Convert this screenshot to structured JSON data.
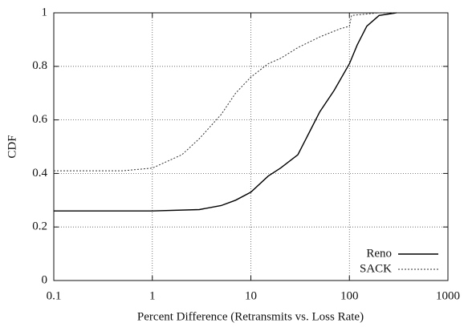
{
  "chart_data": {
    "type": "line",
    "xlabel": "Percent Difference (Retransmits vs. Loss Rate)",
    "ylabel": "CDF",
    "xscale": "log",
    "xlim": [
      0.1,
      1000
    ],
    "xticks": [
      0.1,
      1,
      10,
      100,
      1000
    ],
    "ylim": [
      0,
      1
    ],
    "yticks": [
      0,
      0.2,
      0.4,
      0.6,
      0.8,
      1
    ],
    "grid": true,
    "legend": "lower right",
    "series": [
      {
        "name": "Reno",
        "color": "#000000",
        "style": "solid",
        "x": [
          0.1,
          1,
          3,
          5,
          7,
          10,
          15,
          20,
          30,
          40,
          50,
          70,
          100,
          120,
          150,
          200,
          300
        ],
        "values": [
          0.26,
          0.26,
          0.265,
          0.28,
          0.3,
          0.33,
          0.39,
          0.42,
          0.47,
          0.56,
          0.63,
          0.71,
          0.81,
          0.88,
          0.95,
          0.99,
          1.0
        ]
      },
      {
        "name": "SACK",
        "color": "#333333",
        "style": "dotted",
        "x": [
          0.1,
          0.5,
          1,
          2,
          3,
          5,
          7,
          10,
          15,
          20,
          30,
          50,
          80,
          100,
          105,
          200,
          300
        ],
        "values": [
          0.41,
          0.41,
          0.42,
          0.47,
          0.53,
          0.62,
          0.7,
          0.76,
          0.81,
          0.83,
          0.87,
          0.91,
          0.94,
          0.95,
          0.99,
          1.0,
          1.0
        ]
      }
    ]
  }
}
